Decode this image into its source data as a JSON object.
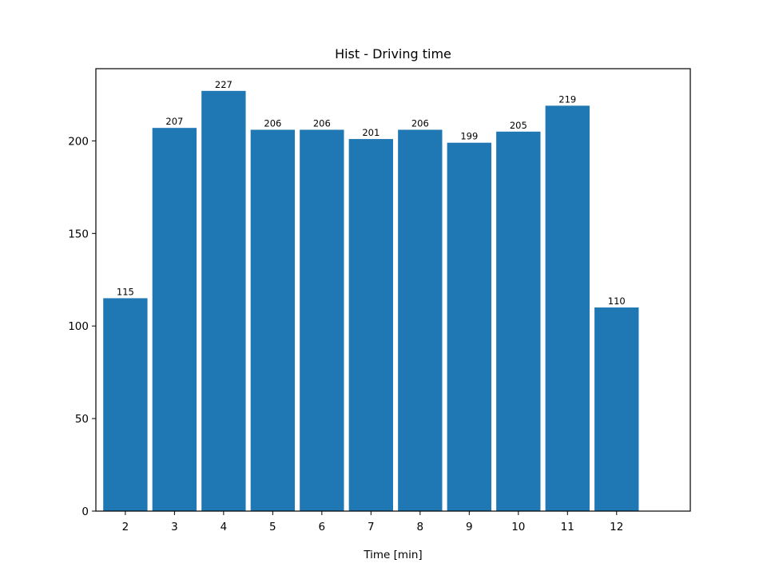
{
  "chart_data": {
    "type": "bar",
    "title": "Hist - Driving time",
    "xlabel": "Time [min]",
    "ylabel": "",
    "categories": [
      "2",
      "3",
      "4",
      "5",
      "6",
      "7",
      "8",
      "9",
      "10",
      "11",
      "12"
    ],
    "values": [
      115,
      207,
      227,
      206,
      206,
      201,
      206,
      199,
      205,
      219,
      110
    ],
    "ylim": [
      0,
      239
    ],
    "yticks": [
      0,
      50,
      100,
      150,
      200
    ],
    "grid": false,
    "bar_color": "#1f77b4",
    "data_labels": true
  }
}
